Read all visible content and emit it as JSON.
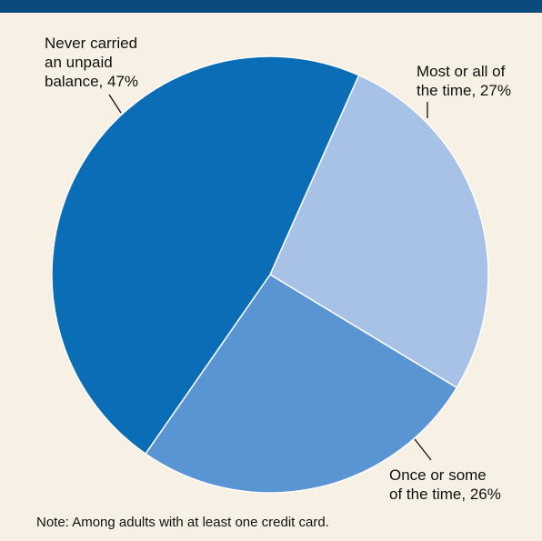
{
  "chart_data": {
    "type": "pie",
    "categories": [
      "Never carried an unpaid balance",
      "Most or all of the time",
      "Once or some of the time"
    ],
    "values": [
      47,
      27,
      26
    ],
    "unit": "%",
    "colors": [
      "#0a6db6",
      "#a8c1e6",
      "#5a95d3"
    ],
    "slice_stroke": "#ffffff",
    "start_angle_deg": 24,
    "labels": [
      {
        "lines": [
          "Never carried",
          "an unpaid",
          "balance, 47%"
        ]
      },
      {
        "lines": [
          "Most or all of",
          "the time, 27%"
        ]
      },
      {
        "lines": [
          "Once or some",
          "of the time, 26%"
        ]
      }
    ],
    "note": "Note: Among adults with at least one credit card."
  },
  "colors": {
    "background": "#f7f0e5",
    "header_bar": "#0a4a7c",
    "text": "#111111"
  }
}
